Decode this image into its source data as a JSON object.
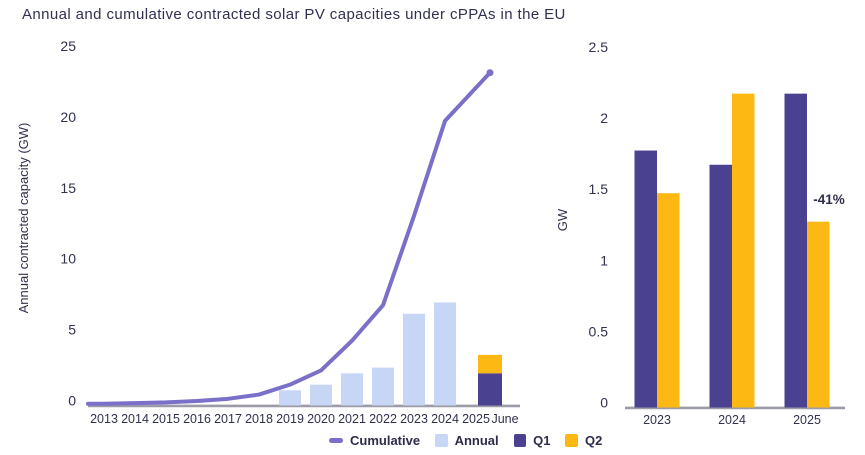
{
  "title": "Annual and cumulative contracted solar PV capacities under cPPAs in the EU",
  "colors": {
    "cumulative_line": "#7A70C9",
    "annual_bar": "#C7D6F4",
    "q1_bar": "#4A4191",
    "q2_bar": "#FDB813",
    "text": "#31314F",
    "axis_line": "#9C9CA8"
  },
  "legend": {
    "items": [
      {
        "label": "Cumulative",
        "swatch": "dash",
        "color": "#7A70C9"
      },
      {
        "label": "Annual",
        "swatch": "square",
        "color": "#C7D6F4"
      },
      {
        "label": "Q1",
        "swatch": "square",
        "color": "#4A4191"
      },
      {
        "label": "Q2",
        "swatch": "square",
        "color": "#FDB813"
      }
    ]
  },
  "chart_data": [
    {
      "type": "line+bar",
      "title": "",
      "xlabel": "",
      "ylabel": "Annual contracted capacity (GW)",
      "ylim": [
        0,
        25
      ],
      "yticks": [
        0,
        5,
        10,
        15,
        20,
        25
      ],
      "x_labels": [
        "2013",
        "2014",
        "2015",
        "2016",
        "2017",
        "2018",
        "2019",
        "2020",
        "2021",
        "2022",
        "2023",
        "2024",
        "2025",
        "June"
      ],
      "series": [
        {
          "name": "Cumulative",
          "type": "line",
          "color": "#7A70C9",
          "x": [
            "2013",
            "2014",
            "2015",
            "2016",
            "2017",
            "2018",
            "2019",
            "2020",
            "2021",
            "2022",
            "2023",
            "2024",
            "2025 June"
          ],
          "values": [
            0.05,
            0.1,
            0.15,
            0.25,
            0.4,
            0.7,
            1.4,
            2.4,
            4.5,
            7.0,
            13.3,
            20.0,
            23.4
          ]
        },
        {
          "name": "Annual",
          "type": "bar",
          "color": "#C7D6F4",
          "x": [
            "2019",
            "2020",
            "2021",
            "2022",
            "2023",
            "2024"
          ],
          "values": [
            1.0,
            1.4,
            2.2,
            2.6,
            6.4,
            7.2
          ]
        },
        {
          "name": "Q1",
          "type": "stacked-bar",
          "color": "#4A4191",
          "x": [
            "2025 June"
          ],
          "values": [
            2.2
          ]
        },
        {
          "name": "Q2",
          "type": "stacked-bar",
          "color": "#FDB813",
          "x": [
            "2025 June"
          ],
          "values": [
            1.3
          ]
        }
      ]
    },
    {
      "type": "bar",
      "title": "",
      "xlabel": "",
      "ylabel": "GW",
      "ylim": [
        0,
        2.5
      ],
      "yticks": [
        0,
        0.5,
        1,
        1.5,
        2,
        2.5
      ],
      "categories": [
        "2023",
        "2024",
        "2025"
      ],
      "series": [
        {
          "name": "Q1",
          "color": "#4A4191",
          "values": [
            1.8,
            1.7,
            2.2
          ]
        },
        {
          "name": "Q2",
          "color": "#FDB813",
          "values": [
            1.5,
            2.2,
            1.3
          ]
        }
      ],
      "annotation": {
        "text": "-41%",
        "target": "2025 Q2"
      }
    }
  ]
}
